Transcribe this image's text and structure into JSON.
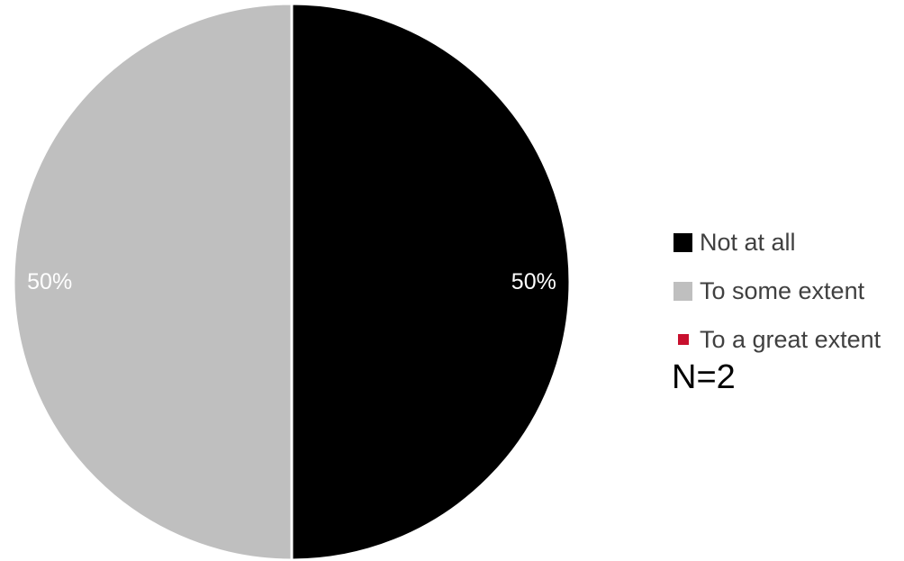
{
  "chart_data": {
    "type": "pie",
    "title": "",
    "slices": [
      {
        "name": "Not at all",
        "value": 50,
        "label": "50%",
        "color": "#000000"
      },
      {
        "name": "To some extent",
        "value": 50,
        "label": "50%",
        "color": "#bfbfbf"
      },
      {
        "name": "To a great extent",
        "value": 0,
        "label": "",
        "color": "#c8102e"
      }
    ],
    "legend_position": "right",
    "annotation": "N=2"
  }
}
